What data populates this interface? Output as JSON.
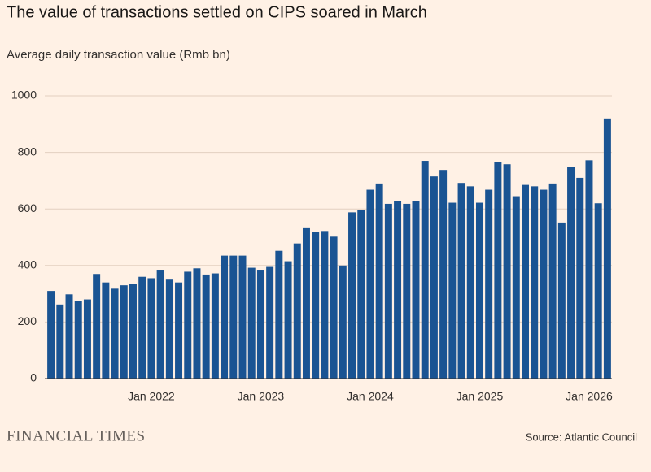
{
  "chart_data": {
    "type": "bar",
    "title": "The value of transactions settled on CIPS soared in March",
    "subtitle": "Average daily transaction value (Rmb bn)",
    "source": "Source: Atlantic Council",
    "brand": "FINANCIAL TIMES",
    "color": "#1a5493",
    "grid": true,
    "ylim": [
      0,
      1000
    ],
    "yticks": [
      0,
      200,
      400,
      600,
      800,
      1000
    ],
    "categories": [
      null,
      null,
      null,
      null,
      null,
      null,
      null,
      null,
      null,
      null,
      null,
      "Jan 2022",
      null,
      null,
      null,
      null,
      null,
      null,
      null,
      null,
      null,
      null,
      null,
      "Jan 2023",
      null,
      null,
      null,
      null,
      null,
      null,
      null,
      null,
      null,
      null,
      null,
      "Jan 2024",
      null,
      null,
      null,
      null,
      null,
      null,
      null,
      null,
      null,
      null,
      null,
      "Jan 2025",
      null,
      null,
      null,
      null,
      null,
      null,
      null,
      null,
      null,
      null,
      null,
      "Jan 2026",
      null,
      null
    ],
    "values": [
      310,
      262,
      298,
      275,
      280,
      370,
      340,
      318,
      330,
      335,
      360,
      355,
      385,
      350,
      340,
      378,
      390,
      368,
      372,
      435,
      435,
      435,
      392,
      385,
      395,
      452,
      415,
      478,
      532,
      518,
      522,
      502,
      400,
      588,
      595,
      668,
      690,
      618,
      628,
      618,
      628,
      770,
      715,
      738,
      622,
      692,
      680,
      622,
      668,
      765,
      758,
      645,
      685,
      680,
      668,
      690,
      552,
      748,
      710,
      772,
      620,
      920
    ]
  }
}
